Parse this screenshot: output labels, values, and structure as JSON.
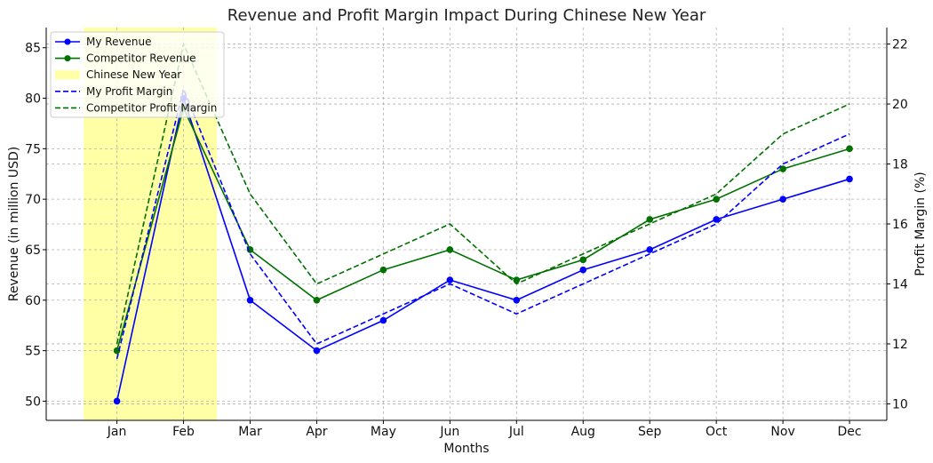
{
  "chart_data": {
    "type": "line",
    "title": "Revenue and Profit Margin Impact During Chinese New Year",
    "xlabel": "Months",
    "ylabel": "Revenue (in million USD)",
    "y2label": "Profit Margin (%)",
    "categories": [
      "Jan",
      "Feb",
      "Mar",
      "Apr",
      "May",
      "Jun",
      "Jul",
      "Aug",
      "Sep",
      "Oct",
      "Nov",
      "Dec"
    ],
    "ylim": [
      48.1,
      87.0
    ],
    "y2lim": [
      9.45,
      22.55
    ],
    "yticks": [
      50,
      55,
      60,
      65,
      70,
      75,
      80,
      85
    ],
    "y2ticks": [
      10,
      12,
      14,
      16,
      18,
      20,
      22
    ],
    "grid": true,
    "legend_position": "top-left",
    "highlight": {
      "name": "Chinese New Year",
      "color": "#ffff00",
      "opacity": 0.35,
      "start_category_offset": -0.5,
      "end_category_offset": 1.5
    },
    "series": [
      {
        "name": "My Revenue",
        "axis": "left",
        "color": "#0000ff",
        "style": "solid",
        "marker": "circle",
        "values": [
          50,
          80,
          60,
          55,
          58,
          62,
          60,
          63,
          65,
          68,
          70,
          72
        ]
      },
      {
        "name": "Competitor Revenue",
        "axis": "left",
        "color": "#007000",
        "style": "solid",
        "marker": "circle",
        "values": [
          55,
          79,
          65,
          60,
          63,
          65,
          62,
          64,
          68,
          70,
          73,
          75
        ]
      },
      {
        "name": "My Profit Margin",
        "axis": "right",
        "color": "#0000ff",
        "style": "dashed",
        "marker": "none",
        "values": [
          11.5,
          20.5,
          15,
          12,
          13,
          14,
          13,
          14,
          15,
          16,
          18,
          19
        ]
      },
      {
        "name": "Competitor Profit Margin",
        "axis": "right",
        "color": "#007000",
        "style": "dashed",
        "marker": "none",
        "values": [
          12,
          22,
          17,
          14,
          15,
          16,
          14,
          15,
          16,
          17,
          19,
          20
        ]
      }
    ]
  }
}
